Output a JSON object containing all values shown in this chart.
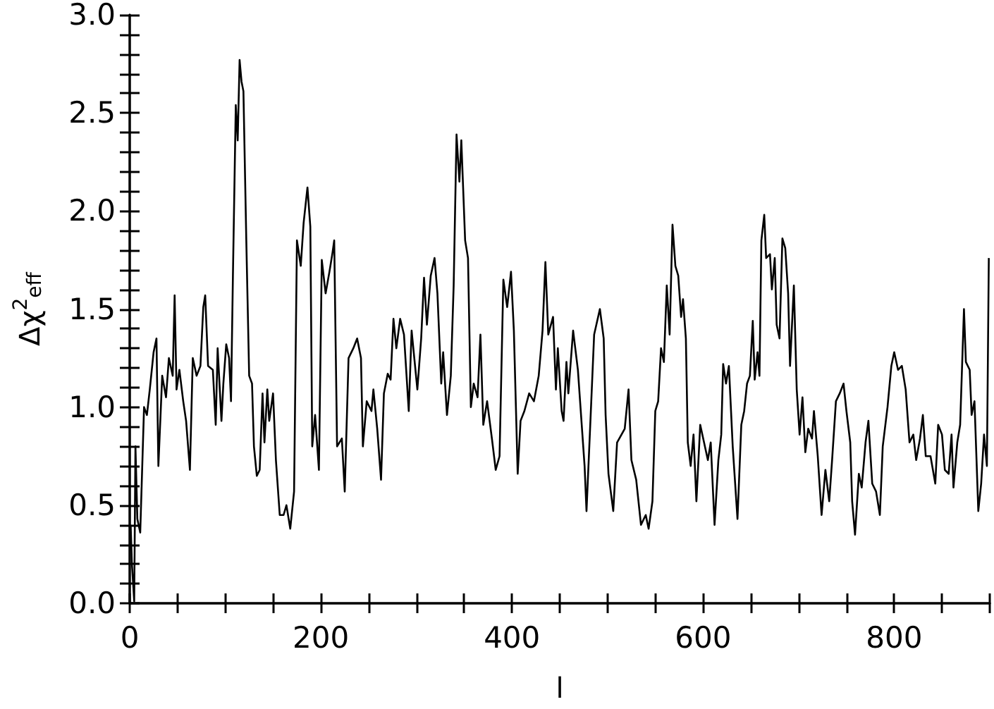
{
  "chart_data": {
    "type": "line",
    "xlabel": "l",
    "ylabel": "Δχ$^{2}$$_{eff}$",
    "xlim": [
      0,
      900
    ],
    "ylim": [
      0,
      3
    ],
    "xticks": [
      0,
      {
        "value": 50,
        "label": null
      },
      {
        "value": 100,
        "label": null
      },
      {
        "value": 150,
        "label": null
      },
      200,
      {
        "value": 250,
        "label": null
      },
      {
        "value": 300,
        "label": null
      },
      {
        "value": 350,
        "label": null
      },
      400,
      {
        "value": 450,
        "label": null
      },
      {
        "value": 500,
        "label": null
      },
      {
        "value": 550,
        "label": null
      },
      600,
      {
        "value": 650,
        "label": null
      },
      {
        "value": 700,
        "label": null
      },
      {
        "value": 750,
        "label": null
      },
      800,
      {
        "value": 850,
        "label": null
      },
      {
        "value": 900,
        "label": null
      }
    ],
    "yticks": [
      {
        "value": 0,
        "label": "0.0"
      },
      {
        "value": 0.1,
        "label": null
      },
      {
        "value": 0.2,
        "label": null
      },
      {
        "value": 0.3,
        "label": null
      },
      {
        "value": 0.4,
        "label": null
      },
      {
        "value": 0.5,
        "label": "0.5"
      },
      {
        "value": 0.6,
        "label": null
      },
      {
        "value": 0.7,
        "label": null
      },
      {
        "value": 0.8,
        "label": null
      },
      {
        "value": 0.9,
        "label": null
      },
      {
        "value": 1,
        "label": "1.0"
      },
      {
        "value": 1.1,
        "label": null
      },
      {
        "value": 1.2,
        "label": null
      },
      {
        "value": 1.3,
        "label": null
      },
      {
        "value": 1.4,
        "label": null
      },
      {
        "value": 1.5,
        "label": "1.5"
      },
      {
        "value": 1.6,
        "label": null
      },
      {
        "value": 1.7,
        "label": null
      },
      {
        "value": 1.8,
        "label": null
      },
      {
        "value": 1.9,
        "label": null
      },
      {
        "value": 2,
        "label": "2.0"
      },
      {
        "value": 2.1,
        "label": null
      },
      {
        "value": 2.2,
        "label": null
      },
      {
        "value": 2.3,
        "label": null
      },
      {
        "value": 2.4,
        "label": null
      },
      {
        "value": 2.5,
        "label": "2.5"
      },
      {
        "value": 2.6,
        "label": null
      },
      {
        "value": 2.7,
        "label": null
      },
      {
        "value": 2.8,
        "label": null
      },
      {
        "value": 2.9,
        "label": null
      },
      {
        "value": 3,
        "label": "3.0"
      }
    ],
    "grid": false,
    "marker": "none",
    "line_style": "solid",
    "series": [
      {
        "color": "#000000",
        "x": [
          1,
          2.3,
          4.7,
          6,
          8,
          11,
          15,
          18,
          21,
          25,
          28,
          30,
          34,
          38,
          41,
          45,
          47,
          49,
          52,
          56,
          59,
          63,
          66,
          70,
          74,
          77,
          79,
          82,
          87,
          90,
          92,
          96,
          98,
          101,
          104,
          106,
          108,
          111,
          113,
          115,
          117,
          119,
          122,
          125,
          128,
          130,
          133,
          136,
          139,
          141,
          144,
          146,
          150,
          153,
          157,
          161,
          164,
          168,
          172,
          175,
          179,
          182,
          186,
          189,
          191,
          194,
          198,
          201,
          205,
          209,
          212,
          214,
          217,
          222,
          225,
          229,
          234,
          238,
          242,
          244,
          248,
          253,
          255,
          259,
          263,
          266,
          270,
          273,
          276,
          279,
          283,
          287,
          292,
          295,
          301,
          305,
          308,
          311,
          315,
          319,
          322,
          326,
          328,
          332,
          336,
          339,
          342,
          345,
          347,
          351,
          354,
          357,
          360,
          364,
          367,
          370,
          374,
          379,
          383,
          387,
          391,
          395,
          399,
          402,
          406,
          409,
          413,
          418,
          423,
          428,
          432,
          435,
          438,
          443,
          446,
          448,
          452,
          454,
          457,
          459,
          464,
          469,
          473,
          476,
          478,
          483,
          486,
          492,
          496,
          498,
          501,
          506,
          510,
          518,
          522,
          525,
          530,
          535,
          540,
          543,
          547,
          550,
          553,
          556,
          559,
          562,
          565,
          568,
          571,
          574,
          577,
          579,
          582,
          584,
          587,
          590,
          593,
          597,
          601,
          605,
          608,
          612,
          616,
          619,
          621,
          624,
          627,
          631,
          636,
          640,
          643,
          646,
          649,
          652,
          654,
          657,
          659,
          661,
          664,
          666,
          670,
          672,
          675,
          677,
          680,
          683,
          686,
          689,
          691,
          695,
          698,
          701,
          704,
          707,
          710,
          714,
          716,
          720,
          724,
          728,
          732,
          735,
          739,
          743,
          747,
          750,
          754,
          756,
          759,
          763,
          766,
          770,
          773,
          777,
          781,
          785,
          788,
          793,
          797,
          800,
          804,
          808,
          812,
          816,
          820,
          823,
          827,
          830,
          833,
          838,
          843,
          846,
          850,
          853,
          857,
          860,
          862,
          866,
          869,
          873,
          875,
          879,
          881,
          884,
          888,
          891,
          894,
          897,
          899
        ],
        "values": [
          0.4,
          0.2,
          0.01,
          0.8,
          0.43,
          0.36,
          1.0,
          0.96,
          1.09,
          1.28,
          1.35,
          0.7,
          1.16,
          1.05,
          1.25,
          1.16,
          1.57,
          1.09,
          1.19,
          1.03,
          0.93,
          0.68,
          1.25,
          1.16,
          1.21,
          1.51,
          1.57,
          1.21,
          1.19,
          0.91,
          1.3,
          0.93,
          1.12,
          1.32,
          1.25,
          1.03,
          1.67,
          2.54,
          2.36,
          2.77,
          2.66,
          2.61,
          1.85,
          1.16,
          1.12,
          0.8,
          0.65,
          0.68,
          1.07,
          0.82,
          1.09,
          0.93,
          1.07,
          0.73,
          0.45,
          0.45,
          0.5,
          0.38,
          0.57,
          1.85,
          1.72,
          1.94,
          2.12,
          1.92,
          0.8,
          0.96,
          0.68,
          1.75,
          1.58,
          1.69,
          1.78,
          1.85,
          0.8,
          0.84,
          0.57,
          1.25,
          1.3,
          1.35,
          1.25,
          0.8,
          1.03,
          0.98,
          1.09,
          0.89,
          0.63,
          1.07,
          1.17,
          1.14,
          1.45,
          1.3,
          1.45,
          1.37,
          0.98,
          1.39,
          1.09,
          1.35,
          1.66,
          1.42,
          1.67,
          1.76,
          1.58,
          1.12,
          1.28,
          0.96,
          1.16,
          1.62,
          2.39,
          2.15,
          2.36,
          1.85,
          1.76,
          1.0,
          1.12,
          1.05,
          1.37,
          0.91,
          1.03,
          0.84,
          0.68,
          0.75,
          1.65,
          1.51,
          1.69,
          1.39,
          0.66,
          0.93,
          0.98,
          1.07,
          1.03,
          1.16,
          1.39,
          1.74,
          1.37,
          1.46,
          1.09,
          1.3,
          0.98,
          0.93,
          1.23,
          1.07,
          1.39,
          1.19,
          0.91,
          0.7,
          0.47,
          1.03,
          1.37,
          1.5,
          1.35,
          0.96,
          0.66,
          0.47,
          0.82,
          0.89,
          1.09,
          0.73,
          0.63,
          0.4,
          0.45,
          0.38,
          0.52,
          0.98,
          1.03,
          1.3,
          1.23,
          1.62,
          1.37,
          1.93,
          1.72,
          1.67,
          1.46,
          1.55,
          1.35,
          0.82,
          0.7,
          0.86,
          0.52,
          0.91,
          0.82,
          0.73,
          0.82,
          0.4,
          0.73,
          0.86,
          1.22,
          1.12,
          1.21,
          0.8,
          0.43,
          0.91,
          0.98,
          1.12,
          1.16,
          1.44,
          1.14,
          1.28,
          1.16,
          1.85,
          1.98,
          1.76,
          1.78,
          1.6,
          1.76,
          1.42,
          1.35,
          1.86,
          1.81,
          1.58,
          1.21,
          1.62,
          1.09,
          0.86,
          1.05,
          0.77,
          0.89,
          0.84,
          0.98,
          0.75,
          0.45,
          0.68,
          0.52,
          0.73,
          1.03,
          1.07,
          1.12,
          0.98,
          0.82,
          0.52,
          0.35,
          0.66,
          0.59,
          0.82,
          0.93,
          0.61,
          0.57,
          0.45,
          0.8,
          1.0,
          1.21,
          1.28,
          1.19,
          1.21,
          1.09,
          0.82,
          0.86,
          0.73,
          0.84,
          0.96,
          0.75,
          0.75,
          0.61,
          0.91,
          0.86,
          0.68,
          0.66,
          0.86,
          0.59,
          0.82,
          0.91,
          1.5,
          1.23,
          1.19,
          0.96,
          1.03,
          0.47,
          0.61,
          0.86,
          0.7,
          1.76
        ]
      }
    ]
  }
}
